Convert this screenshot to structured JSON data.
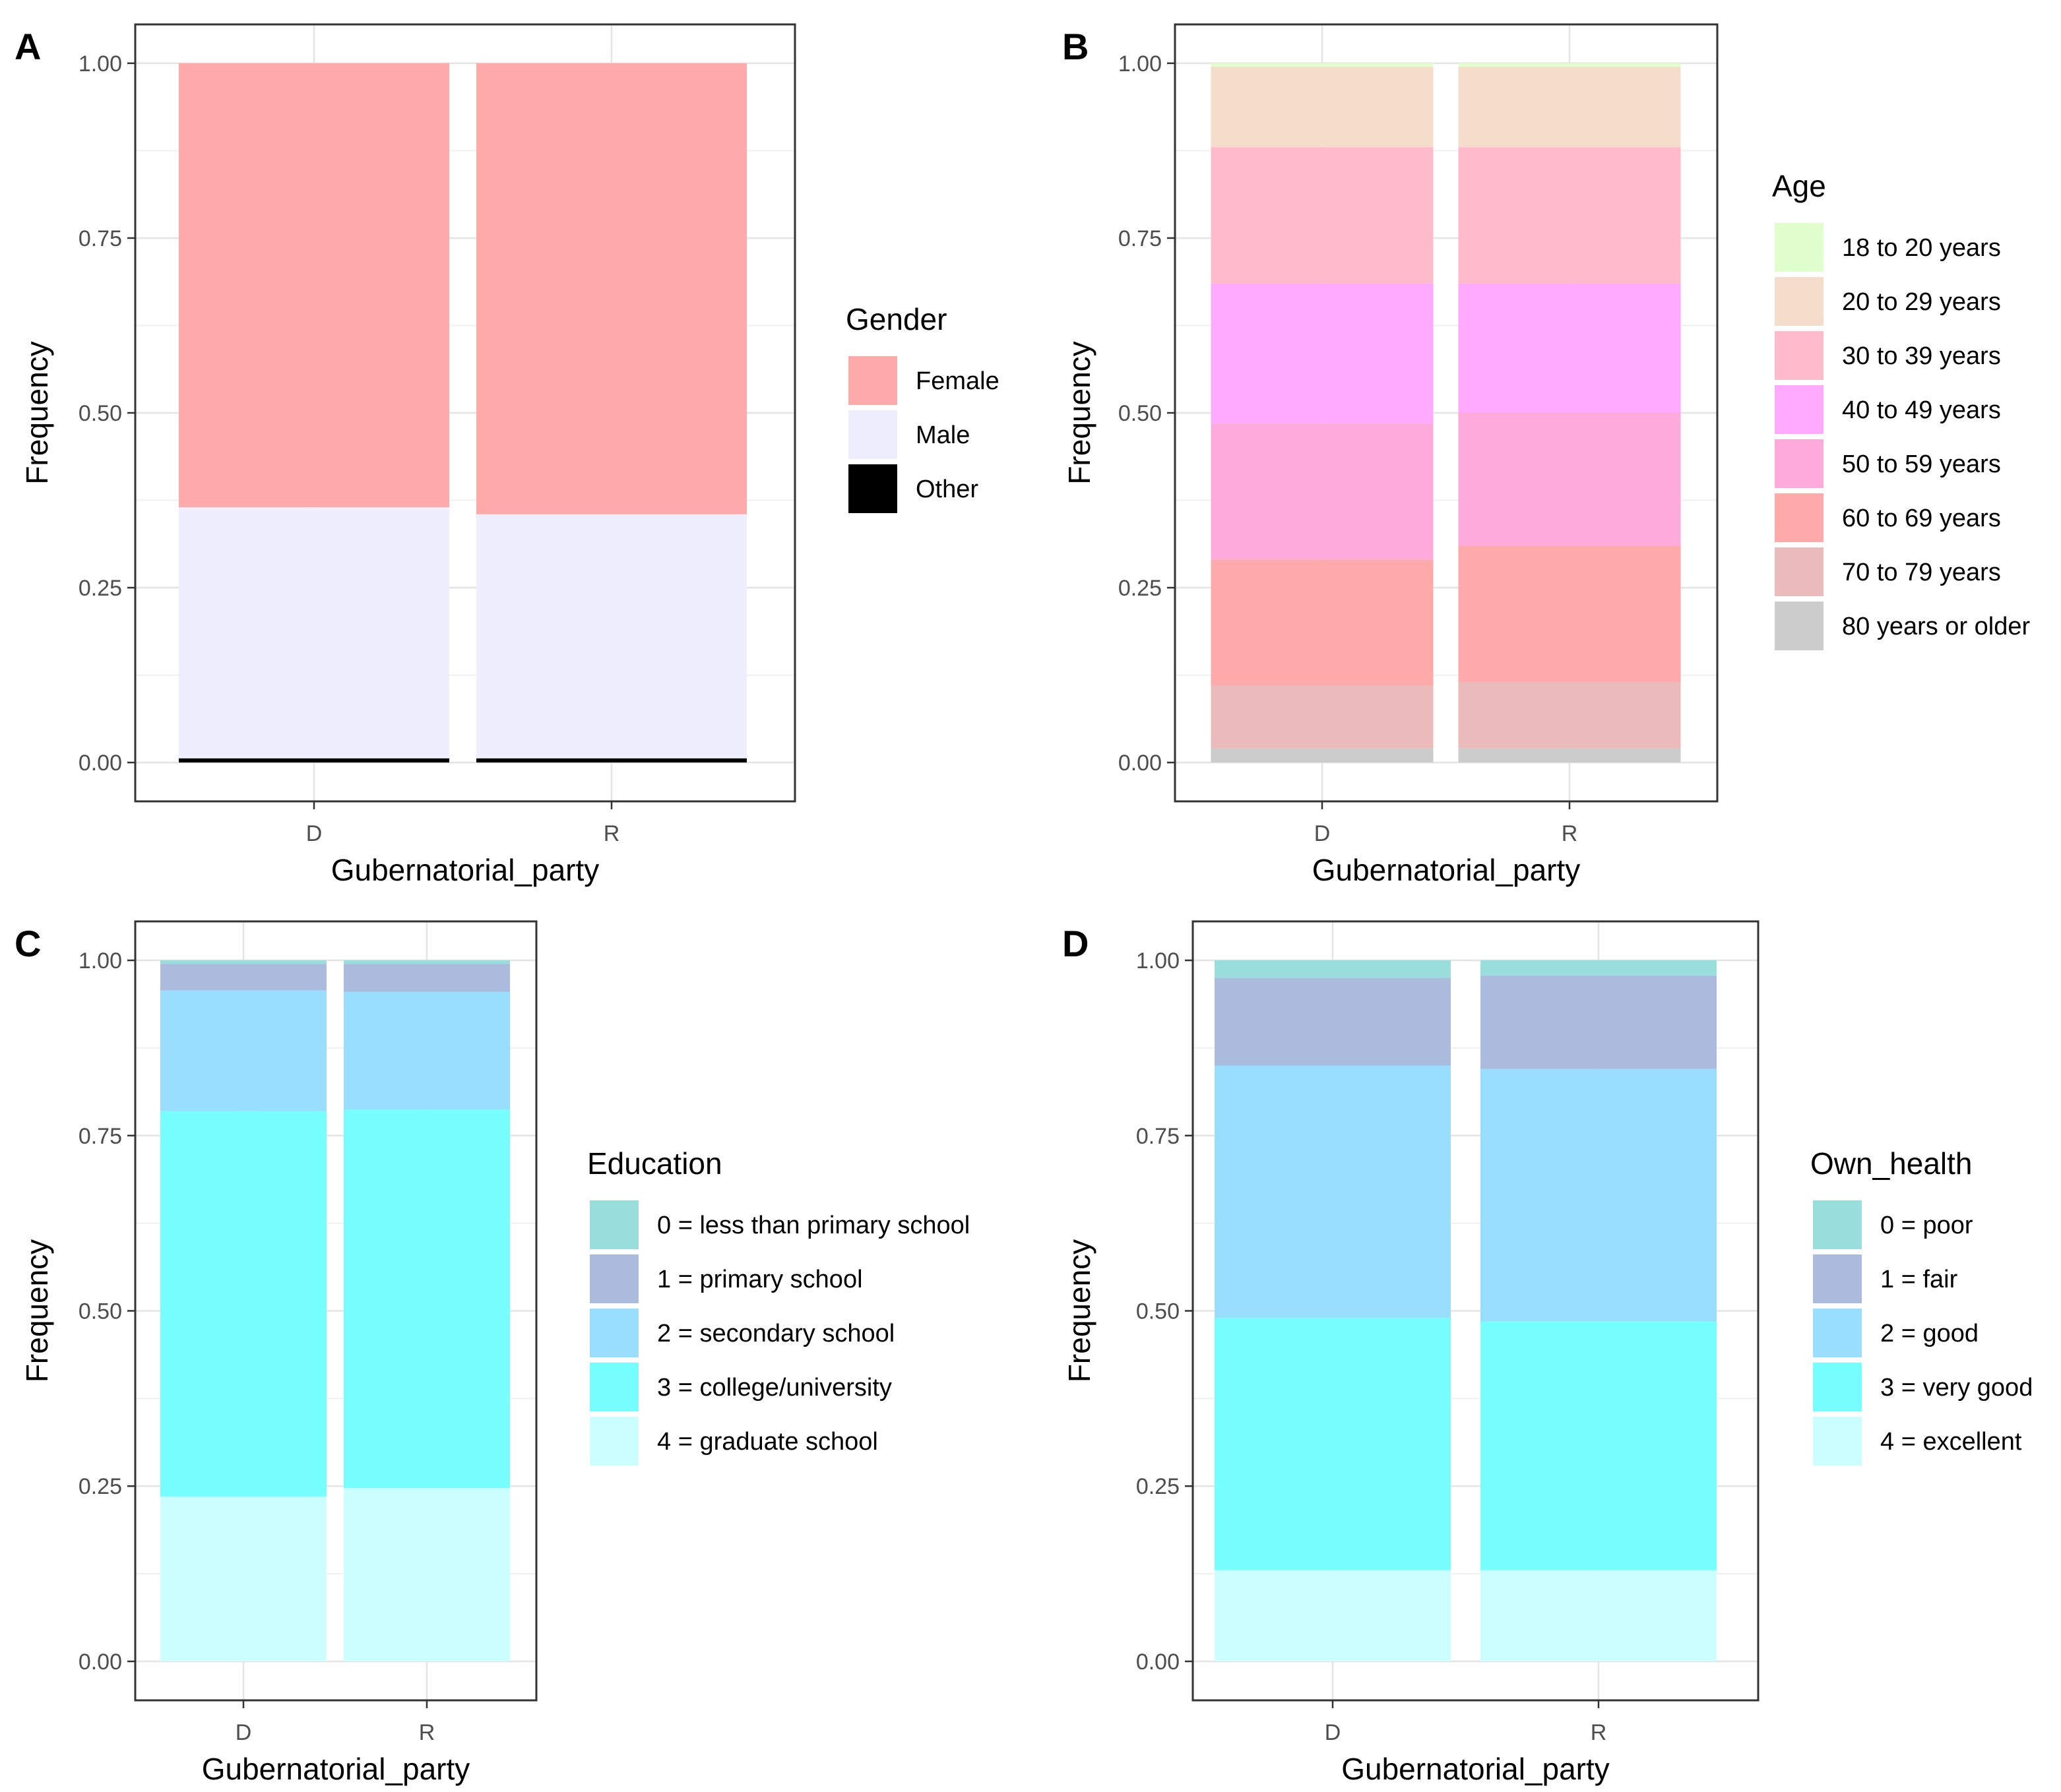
{
  "chart_data": [
    {
      "type": "bar",
      "stacked": true,
      "panel_label": "A",
      "xlabel": "Gubernatorial_party",
      "ylabel": "Frequency",
      "categories": [
        "D",
        "R"
      ],
      "ylim": [
        0,
        1
      ],
      "yticks": [
        "0.00",
        "0.25",
        "0.50",
        "0.75",
        "1.00"
      ],
      "legend_title": "Gender",
      "series": [
        {
          "name": "Female",
          "color": "#FFAAAA",
          "values": [
            0.635,
            0.645
          ]
        },
        {
          "name": "Male",
          "color": "#EEEEFF",
          "values": [
            0.359,
            0.349
          ]
        },
        {
          "name": "Other",
          "color": "#000000",
          "values": [
            0.006,
            0.006
          ]
        }
      ]
    },
    {
      "type": "bar",
      "stacked": true,
      "panel_label": "B",
      "xlabel": "Gubernatorial_party",
      "ylabel": "Frequency",
      "categories": [
        "D",
        "R"
      ],
      "ylim": [
        0,
        1
      ],
      "yticks": [
        "0.00",
        "0.25",
        "0.50",
        "0.75",
        "1.00"
      ],
      "legend_title": "Age",
      "series": [
        {
          "name": "18 to 20 years",
          "color": "#E0FFCC",
          "values": [
            0.005,
            0.005
          ]
        },
        {
          "name": "20 to 29 years",
          "color": "#F5DDCC",
          "values": [
            0.115,
            0.115
          ]
        },
        {
          "name": "30 to 39 years",
          "color": "#FFBBCC",
          "values": [
            0.195,
            0.195
          ]
        },
        {
          "name": "40 to 49 years",
          "color": "#FFAAFF",
          "values": [
            0.2,
            0.185
          ]
        },
        {
          "name": "50 to 59 years",
          "color": "#FFAADD",
          "values": [
            0.195,
            0.19
          ]
        },
        {
          "name": "60 to 69 years",
          "color": "#FFAAAA",
          "values": [
            0.18,
            0.195
          ]
        },
        {
          "name": "70 to 79 years",
          "color": "#EBBBBB",
          "values": [
            0.09,
            0.095
          ]
        },
        {
          "name": "80 years or older",
          "color": "#CCCCCC",
          "values": [
            0.02,
            0.02
          ]
        }
      ]
    },
    {
      "type": "bar",
      "stacked": true,
      "panel_label": "C",
      "xlabel": "Gubernatorial_party",
      "ylabel": "Frequency",
      "categories": [
        "D",
        "R"
      ],
      "ylim": [
        0,
        1
      ],
      "yticks": [
        "0.00",
        "0.25",
        "0.50",
        "0.75",
        "1.00"
      ],
      "legend_title": "Education",
      "series": [
        {
          "name": "0 = less than primary school",
          "color": "#99DDDD",
          "values": [
            0.005,
            0.005
          ]
        },
        {
          "name": "1 = primary school",
          "color": "#AABBDD",
          "values": [
            0.038,
            0.04
          ]
        },
        {
          "name": "2 = secondary school",
          "color": "#99DDFF",
          "values": [
            0.172,
            0.168
          ]
        },
        {
          "name": "3 = college/university",
          "color": "#77FFFF",
          "values": [
            0.55,
            0.54
          ]
        },
        {
          "name": "4 = graduate school",
          "color": "#CCFFFF",
          "values": [
            0.235,
            0.247
          ]
        }
      ]
    },
    {
      "type": "bar",
      "stacked": true,
      "panel_label": "D",
      "xlabel": "Gubernatorial_party",
      "ylabel": "Frequency",
      "categories": [
        "D",
        "R"
      ],
      "ylim": [
        0,
        1
      ],
      "yticks": [
        "0.00",
        "0.25",
        "0.50",
        "0.75",
        "1.00"
      ],
      "legend_title": "Own_health",
      "series": [
        {
          "name": "0 = poor",
          "color": "#99DDDD",
          "values": [
            0.025,
            0.022
          ]
        },
        {
          "name": "1 = fair",
          "color": "#AABBDD",
          "values": [
            0.125,
            0.133
          ]
        },
        {
          "name": "2 = good",
          "color": "#99DDFF",
          "values": [
            0.36,
            0.36
          ]
        },
        {
          "name": "3 = very good",
          "color": "#77FFFF",
          "values": [
            0.36,
            0.355
          ]
        },
        {
          "name": "4 = excellent",
          "color": "#CCFFFF",
          "values": [
            0.13,
            0.13
          ]
        }
      ]
    }
  ]
}
